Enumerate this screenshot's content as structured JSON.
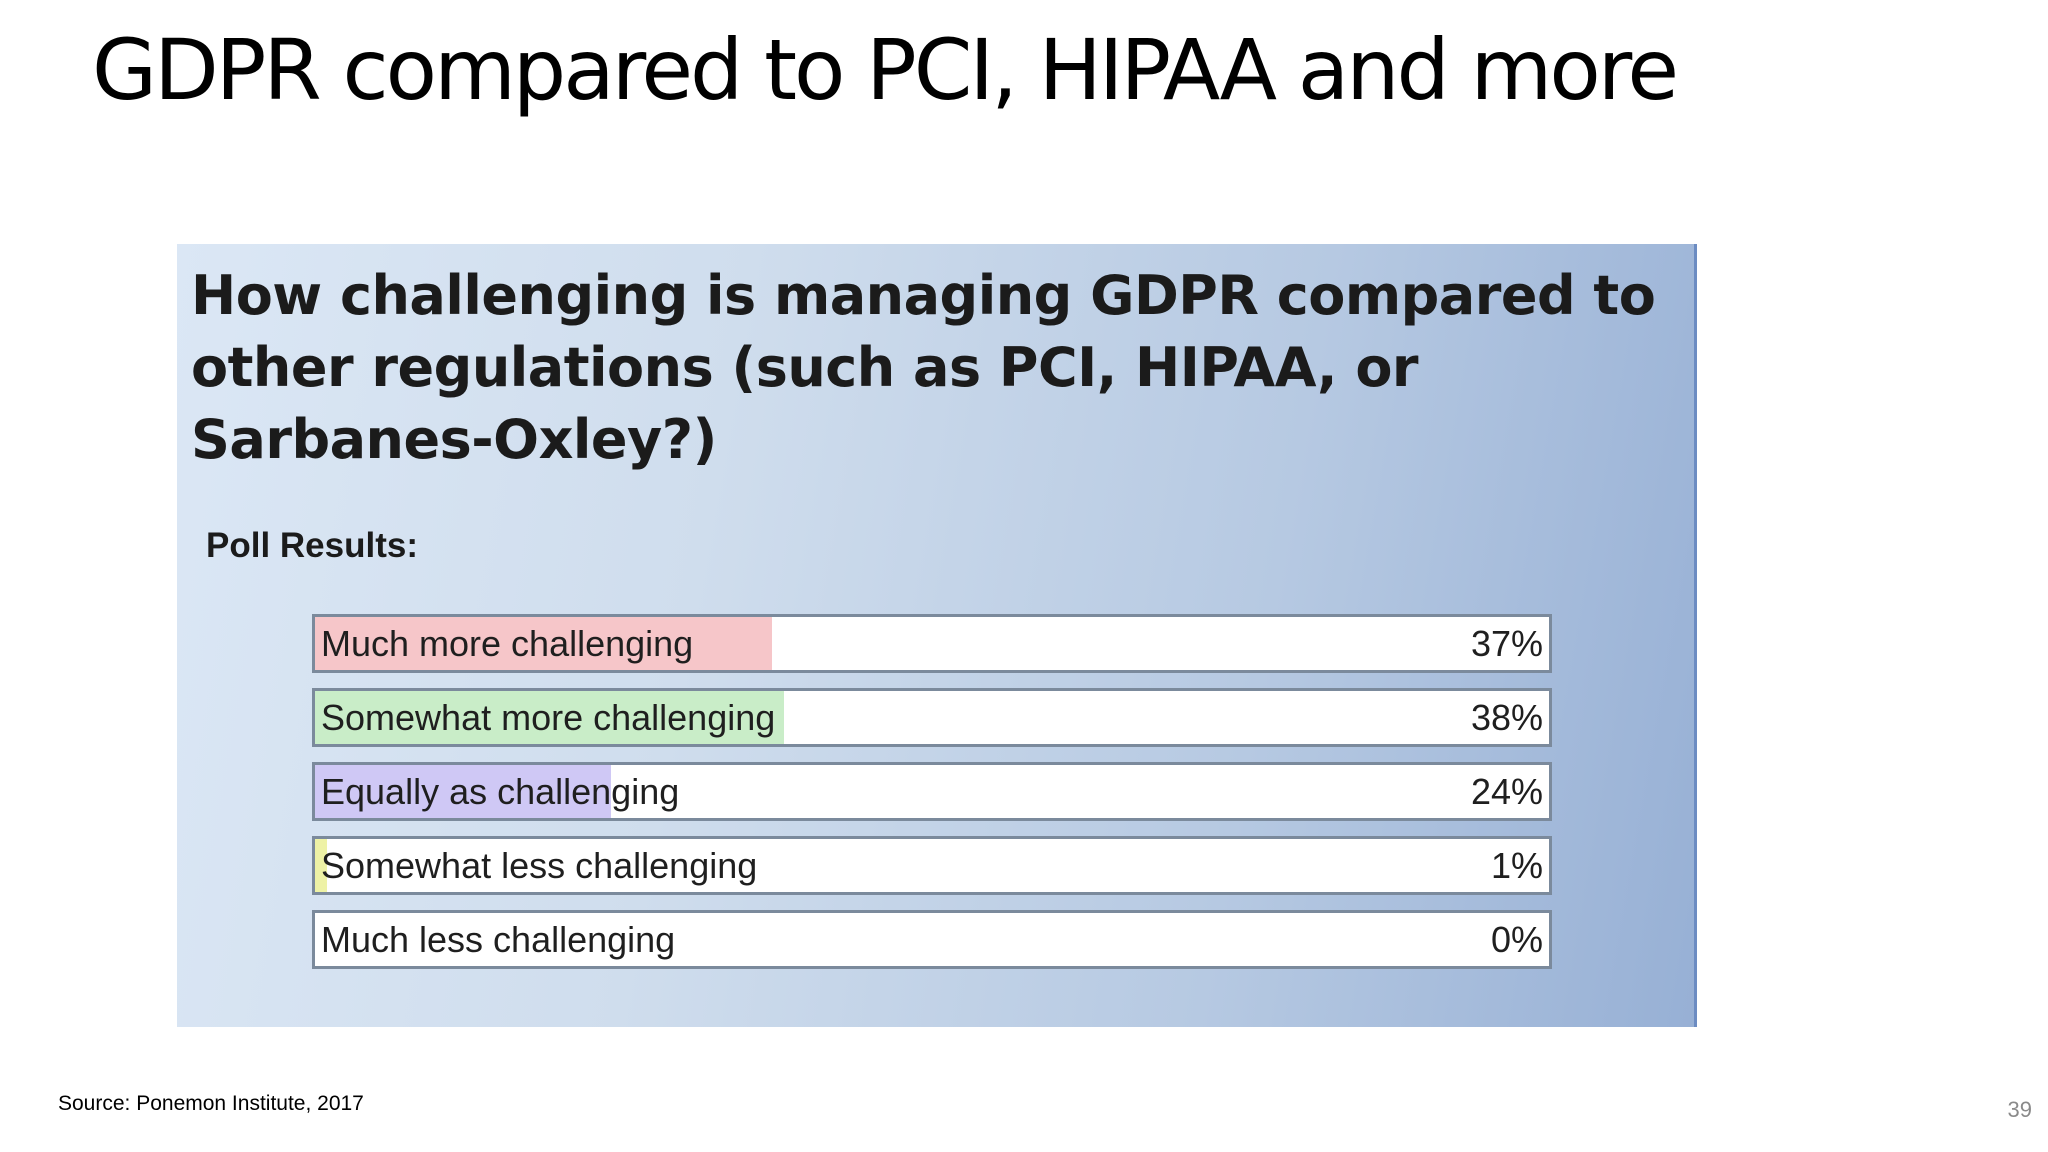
{
  "slide": {
    "title": "GDPR compared to PCI, HIPAA and more",
    "source": "Source: Ponemon Institute, 2017",
    "page_number": "39"
  },
  "chart_data": {
    "type": "bar",
    "title": "How challenging is managing GDPR compared to other regulations (such as PCI, HIPAA, or Sarbanes-Oxley?)",
    "subtitle": "Poll Results:",
    "categories": [
      "Much more challenging",
      "Somewhat more challenging",
      "Equally as challenging",
      "Somewhat less challenging",
      "Much less challenging"
    ],
    "values": [
      37,
      38,
      24,
      1,
      0
    ],
    "value_labels": [
      "37%",
      "38%",
      "24%",
      "1%",
      "0%"
    ],
    "bar_colors": [
      "#f6c6c9",
      "#c9edc8",
      "#cfc8f5",
      "#eef2a6",
      "#ffffff"
    ],
    "orientation": "horizontal",
    "xlim": [
      0,
      100
    ]
  }
}
